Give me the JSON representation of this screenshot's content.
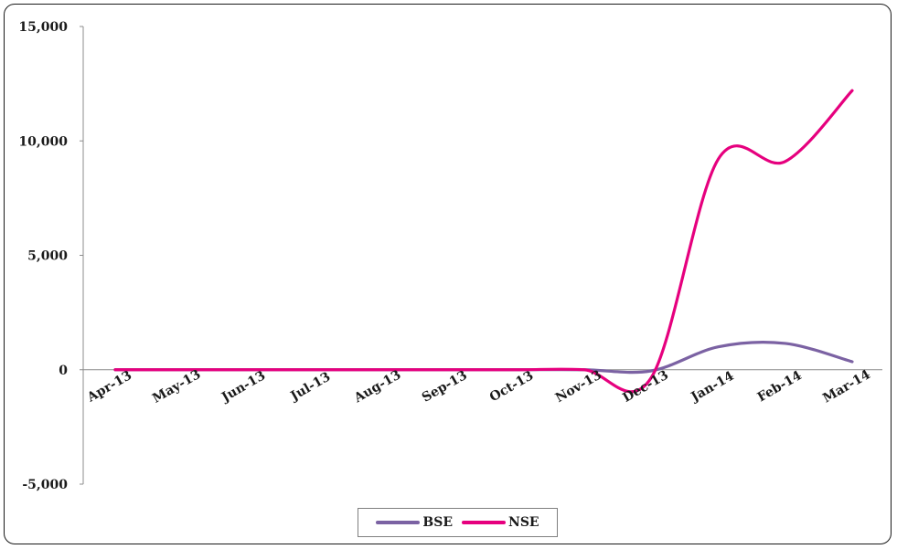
{
  "chart_data": {
    "type": "line",
    "title": "",
    "xlabel": "",
    "ylabel": "",
    "categories": [
      "Apr-13",
      "May-13",
      "Jun-13",
      "Jul-13",
      "Aug-13",
      "Sep-13",
      "Oct-13",
      "Nov-13",
      "Dec-13",
      "Jan-14",
      "Feb-14",
      "Mar-14"
    ],
    "ylim": [
      -5000,
      15000
    ],
    "yticks": [
      -5000,
      0,
      5000,
      10000,
      15000
    ],
    "ytick_labels": [
      "-5,000",
      "0",
      "5,000",
      "10,000",
      "15,000"
    ],
    "series": [
      {
        "name": "BSE",
        "color": "#7b62a3",
        "values": [
          0,
          0,
          0,
          0,
          0,
          0,
          0,
          0,
          -50,
          1000,
          1150,
          350
        ]
      },
      {
        "name": "NSE",
        "color": "#e6007e",
        "values": [
          0,
          0,
          0,
          0,
          0,
          0,
          0,
          0,
          -350,
          9200,
          9100,
          12200
        ]
      }
    ],
    "legend_position": "bottom",
    "grid": false
  }
}
